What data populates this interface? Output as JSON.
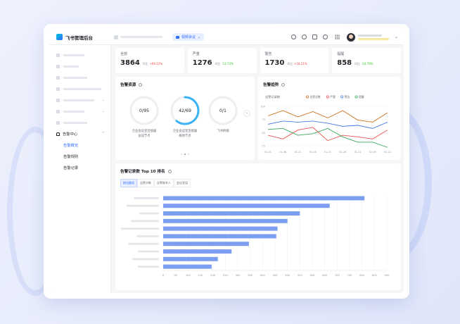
{
  "app": {
    "title": "飞书管理后台",
    "meeting_button": "视频会议"
  },
  "sidebar": {
    "group": {
      "label": "告警中心"
    },
    "items": [
      {
        "label": "告警概览",
        "active": true
      },
      {
        "label": "告警规则",
        "active": false
      },
      {
        "label": "告警记录",
        "active": false
      }
    ]
  },
  "stats": [
    {
      "label": "全部",
      "value": "3864",
      "yoy": "环比",
      "change": "+69.22%",
      "dir": "up"
    },
    {
      "label": "严重",
      "value": "1276",
      "yoy": "环比",
      "change": "-13.73%",
      "dir": "down"
    },
    {
      "label": "警告",
      "value": "1730",
      "yoy": "环比",
      "change": "+18.21%",
      "dir": "up"
    },
    {
      "label": "提醒",
      "value": "858",
      "yoy": "环比",
      "change": "-24.79%",
      "dir": "down"
    }
  ],
  "alert_resources": {
    "title": "告警资源",
    "items": [
      {
        "value": "0/95",
        "numerator": 0,
        "denominator": 95,
        "caption1": "企业会议室连接器",
        "caption2": "会议节点"
      },
      {
        "value": "42/69",
        "numerator": 42,
        "denominator": 69,
        "caption1": "企业会议室连接器",
        "caption2": "媒体节点"
      },
      {
        "value": "0/1",
        "numerator": 0,
        "denominator": 1,
        "caption1": "飞书终端",
        "caption2": ""
      }
    ],
    "next_arrow": "›"
  },
  "colors": {
    "accent": "#3370ff",
    "ring_bg": "#eceef2",
    "ring_fg": "#3bb2f3"
  },
  "chart_data": [
    {
      "type": "line",
      "title": "告警趋势",
      "ylabel": "告警记录数",
      "x": [
        "01-01",
        "01-06",
        "01-11",
        "01-16",
        "01-21",
        "01-26",
        "01-31",
        "02-05",
        "02-12"
      ],
      "ylim": [
        25,
        100
      ],
      "yticks": [
        25,
        50,
        75,
        100
      ],
      "legend_position": "top",
      "series": [
        {
          "name": "告警总数",
          "color": "#c9701a",
          "values": [
            82,
            92,
            80,
            90,
            78,
            92,
            74,
            70,
            88
          ]
        },
        {
          "name": "严重",
          "color": "#e8524f",
          "values": [
            45,
            38,
            55,
            60,
            35,
            45,
            42,
            38,
            55
          ]
        },
        {
          "name": "警告",
          "color": "#4a7ce8",
          "values": [
            66,
            72,
            70,
            72,
            68,
            62,
            64,
            58,
            70
          ]
        },
        {
          "name": "提醒",
          "color": "#3aa65a",
          "values": [
            56,
            58,
            45,
            48,
            58,
            42,
            32,
            32,
            22
          ]
        }
      ]
    },
    {
      "type": "bar",
      "orientation": "horizontal",
      "title": "告警记录数 Top 10 排名",
      "tabs": [
        "按设备组",
        "告警对象",
        "告警联系人",
        "会议室组"
      ],
      "active_tab": 0,
      "values": [
        810,
        670,
        550,
        500,
        460,
        455,
        345,
        275,
        220,
        195
      ],
      "xlim": [
        0,
        900
      ],
      "xticks": [
        0,
        50,
        100,
        150,
        200,
        250,
        300,
        350,
        400,
        450,
        500,
        550,
        600,
        650,
        700,
        750,
        800,
        850,
        900
      ],
      "grid": true,
      "color": "#7b9ef0"
    }
  ]
}
